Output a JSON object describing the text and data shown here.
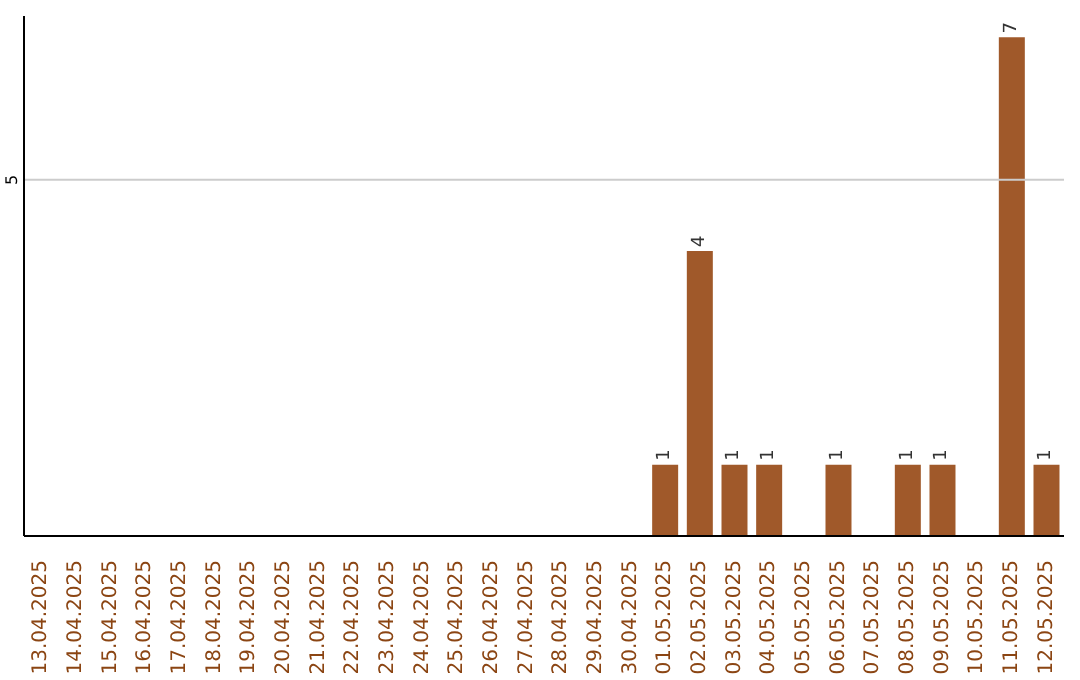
{
  "chart_data": {
    "type": "bar",
    "categories": [
      "13.04.2025",
      "14.04.2025",
      "15.04.2025",
      "16.04.2025",
      "17.04.2025",
      "18.04.2025",
      "19.04.2025",
      "20.04.2025",
      "21.04.2025",
      "22.04.2025",
      "23.04.2025",
      "24.04.2025",
      "25.04.2025",
      "26.04.2025",
      "27.04.2025",
      "28.04.2025",
      "29.04.2025",
      "30.04.2025",
      "01.05.2025",
      "02.05.2025",
      "03.05.2025",
      "04.05.2025",
      "05.05.2025",
      "06.05.2025",
      "07.05.2025",
      "08.05.2025",
      "09.05.2025",
      "10.05.2025",
      "11.05.2025",
      "12.05.2025"
    ],
    "values": [
      null,
      null,
      null,
      null,
      null,
      null,
      null,
      null,
      null,
      null,
      null,
      null,
      null,
      null,
      null,
      null,
      null,
      null,
      1,
      4,
      1,
      1,
      null,
      1,
      null,
      1,
      1,
      null,
      7,
      1
    ],
    "data_labels": true,
    "color": "#a0592a",
    "ylim": [
      0,
      7.3
    ],
    "ref_lines": [
      {
        "axis": "y",
        "value": 5,
        "label": "5",
        "color": "#cccccc"
      }
    ]
  }
}
